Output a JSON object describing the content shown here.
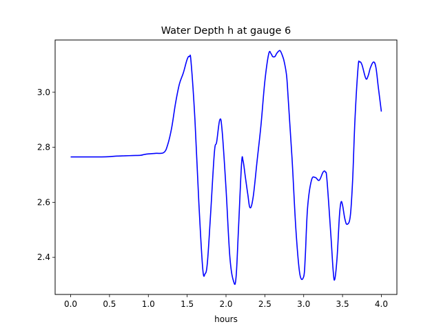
{
  "chart_data": {
    "type": "line",
    "title": "Water Depth h at gauge 6",
    "xlabel": "hours",
    "ylabel": "",
    "xlim": [
      -0.2,
      4.2
    ],
    "ylim": [
      2.265,
      3.19
    ],
    "grid": false,
    "xticks": [
      0.0,
      0.5,
      1.0,
      1.5,
      2.0,
      2.5,
      3.0,
      3.5,
      4.0
    ],
    "xtick_labels": [
      "0.0",
      "0.5",
      "1.0",
      "1.5",
      "2.0",
      "2.5",
      "3.0",
      "3.5",
      "4.0"
    ],
    "yticks": [
      2.4,
      2.6,
      2.8,
      3.0
    ],
    "ytick_labels": [
      "2.4",
      "2.6",
      "2.8",
      "3.0"
    ],
    "series": [
      {
        "color": "#0000ff",
        "x": [
          0.0,
          0.1,
          0.2,
          0.3,
          0.4,
          0.5,
          0.6,
          0.7,
          0.8,
          0.9,
          0.95,
          1.0,
          1.1,
          1.2,
          1.25,
          1.3,
          1.35,
          1.4,
          1.45,
          1.5,
          1.53,
          1.55,
          1.6,
          1.65,
          1.7,
          1.73,
          1.76,
          1.8,
          1.85,
          1.88,
          1.92,
          1.95,
          2.0,
          2.05,
          2.1,
          2.13,
          2.16,
          2.2,
          2.22,
          2.25,
          2.28,
          2.31,
          2.35,
          2.4,
          2.45,
          2.5,
          2.55,
          2.58,
          2.6,
          2.63,
          2.65,
          2.68,
          2.7,
          2.73,
          2.75,
          2.78,
          2.8,
          2.85,
          2.9,
          2.95,
          3.0,
          3.02,
          3.05,
          3.1,
          3.15,
          3.2,
          3.25,
          3.28,
          3.3,
          3.35,
          3.38,
          3.4,
          3.43,
          3.46,
          3.48,
          3.5,
          3.53,
          3.56,
          3.6,
          3.63,
          3.66,
          3.7,
          3.72,
          3.75,
          3.8,
          3.83,
          3.86,
          3.9,
          3.93,
          3.96,
          4.0
        ],
        "values": [
          2.765,
          2.765,
          2.765,
          2.765,
          2.765,
          2.766,
          2.768,
          2.769,
          2.77,
          2.771,
          2.774,
          2.776,
          2.778,
          2.781,
          2.81,
          2.87,
          2.96,
          3.03,
          3.07,
          3.12,
          3.13,
          3.11,
          2.9,
          2.6,
          2.36,
          2.34,
          2.38,
          2.55,
          2.78,
          2.82,
          2.9,
          2.86,
          2.65,
          2.4,
          2.31,
          2.33,
          2.5,
          2.74,
          2.75,
          2.69,
          2.63,
          2.58,
          2.62,
          2.75,
          2.88,
          3.04,
          3.14,
          3.14,
          3.13,
          3.13,
          3.14,
          3.15,
          3.15,
          3.13,
          3.11,
          3.06,
          2.98,
          2.76,
          2.5,
          2.34,
          2.33,
          2.4,
          2.58,
          2.68,
          2.69,
          2.68,
          2.71,
          2.71,
          2.68,
          2.48,
          2.35,
          2.32,
          2.4,
          2.55,
          2.6,
          2.59,
          2.54,
          2.52,
          2.55,
          2.68,
          2.9,
          3.09,
          3.11,
          3.1,
          3.05,
          3.06,
          3.09,
          3.11,
          3.09,
          3.02,
          2.93
        ]
      }
    ]
  }
}
